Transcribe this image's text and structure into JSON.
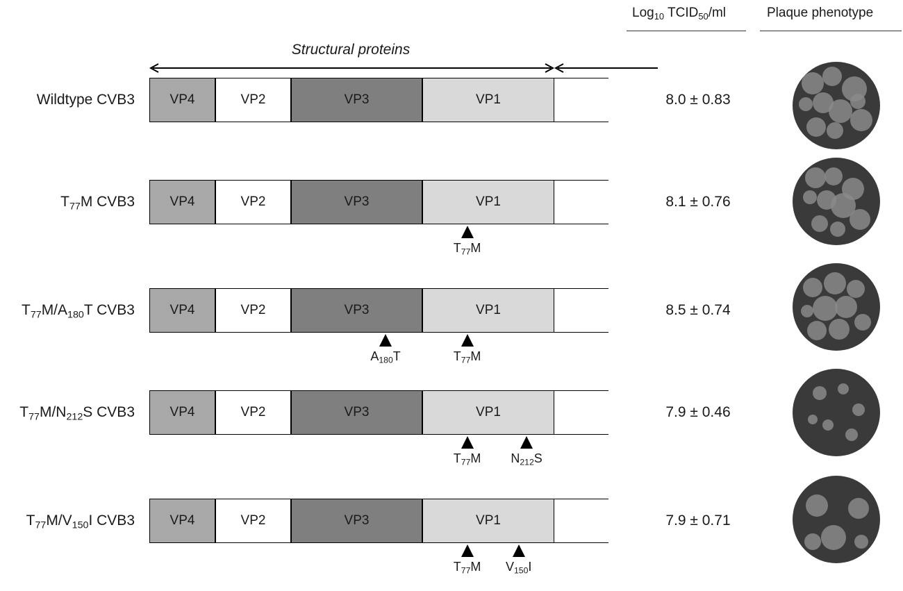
{
  "header": {
    "titer": {
      "pre": "Log",
      "sub": "10",
      "mid": " TCID",
      "sub2": "50",
      "post": "/ml"
    },
    "plaque": "Plaque phenotype"
  },
  "structural_label": "Structural proteins",
  "segments": [
    "VP4",
    "VP2",
    "VP3",
    "VP1"
  ],
  "colors": {
    "VP4": "#a8a8a8",
    "VP2": "#ffffff",
    "VP3": "#7f7f7f",
    "VP1": "#d9d9d9",
    "plaque_bg": "#3a3a3a",
    "plaque_spot": "#8a8a8a"
  },
  "rows": [
    {
      "label": [
        {
          "t": "Wildtype CVB3"
        }
      ],
      "titer": "8.0 ± 0.83",
      "mutations": []
    },
    {
      "label": [
        {
          "t": "T"
        },
        {
          "s": "77"
        },
        {
          "t": "M CVB3"
        }
      ],
      "titer": "8.1 ± 0.76",
      "mutations": [
        {
          "segment": "VP1",
          "pos": 0.34,
          "label": [
            {
              "t": "T"
            },
            {
              "s": "77"
            },
            {
              "t": "M"
            }
          ]
        }
      ]
    },
    {
      "label": [
        {
          "t": "T"
        },
        {
          "s": "77"
        },
        {
          "t": "M/A"
        },
        {
          "s": "180"
        },
        {
          "t": "T CVB3"
        }
      ],
      "titer": "8.5 ± 0.74",
      "mutations": [
        {
          "segment": "VP3",
          "pos": 0.72,
          "label": [
            {
              "t": "A"
            },
            {
              "s": "180"
            },
            {
              "t": "T"
            }
          ]
        },
        {
          "segment": "VP1",
          "pos": 0.34,
          "label": [
            {
              "t": "T"
            },
            {
              "s": "77"
            },
            {
              "t": "M"
            }
          ]
        }
      ]
    },
    {
      "label": [
        {
          "t": "T"
        },
        {
          "s": "77"
        },
        {
          "t": "M/N"
        },
        {
          "s": "212"
        },
        {
          "t": "S CVB3"
        }
      ],
      "titer": "7.9 ± 0.46",
      "mutations": [
        {
          "segment": "VP1",
          "pos": 0.34,
          "label": [
            {
              "t": "T"
            },
            {
              "s": "77"
            },
            {
              "t": "M"
            }
          ]
        },
        {
          "segment": "VP1",
          "pos": 0.79,
          "label": [
            {
              "t": "N"
            },
            {
              "s": "212"
            },
            {
              "t": "S"
            }
          ]
        }
      ]
    },
    {
      "label": [
        {
          "t": "T"
        },
        {
          "s": "77"
        },
        {
          "t": "M/V"
        },
        {
          "s": "150"
        },
        {
          "t": "I CVB3"
        }
      ],
      "titer": "7.9 ± 0.71",
      "mutations": [
        {
          "segment": "VP1",
          "pos": 0.34,
          "label": [
            {
              "t": "T"
            },
            {
              "s": "77"
            },
            {
              "t": "M"
            }
          ]
        },
        {
          "segment": "VP1",
          "pos": 0.73,
          "label": [
            {
              "t": "V"
            },
            {
              "s": "150"
            },
            {
              "t": "I"
            }
          ]
        }
      ]
    }
  ]
}
